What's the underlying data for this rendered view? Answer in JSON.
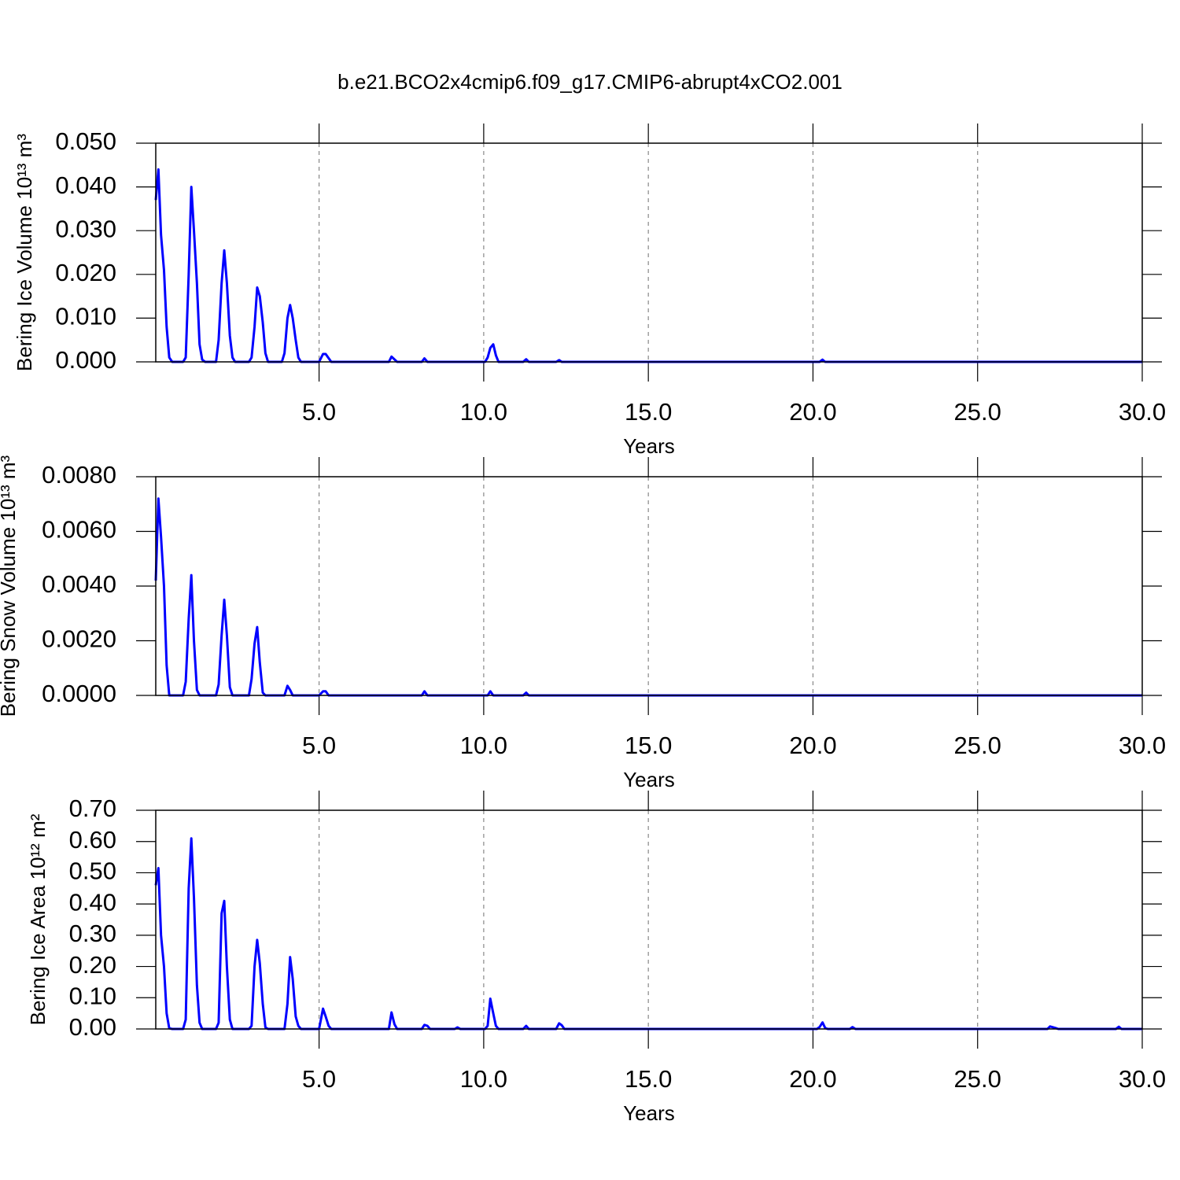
{
  "chart_data": [
    {
      "type": "line",
      "title": "b.e21.BCO2x4cmip6.f09_g17.CMIP6-abrupt4xCO2.001",
      "ylabel": "Bering Ice Volume 10¹³ m³",
      "xlabel": "Years",
      "color": "#0000ff",
      "xgrid": true,
      "xlim": [
        0.04,
        30
      ],
      "ylim": [
        0,
        0.05
      ],
      "xticks": [
        {
          "value": 5,
          "label": "5.0"
        },
        {
          "value": 10,
          "label": "10.0"
        },
        {
          "value": 15,
          "label": "15.0"
        },
        {
          "value": 20,
          "label": "20.0"
        },
        {
          "value": 25,
          "label": "25.0"
        },
        {
          "value": 30,
          "label": "30.0"
        }
      ],
      "yticks": [
        {
          "value": 0,
          "label": "0.000"
        },
        {
          "value": 0.01,
          "label": "0.010"
        },
        {
          "value": 0.02,
          "label": "0.020"
        },
        {
          "value": 0.03,
          "label": "0.030"
        },
        {
          "value": 0.04,
          "label": "0.040"
        },
        {
          "value": 0.05,
          "label": "0.050"
        }
      ],
      "x": [
        0.04,
        0.12,
        0.2,
        0.29,
        0.37,
        0.45,
        0.54,
        0.87,
        0.95,
        1.04,
        1.12,
        1.2,
        1.29,
        1.37,
        1.45,
        1.54,
        1.87,
        1.95,
        2.04,
        2.12,
        2.2,
        2.29,
        2.37,
        2.45,
        2.87,
        2.95,
        3.04,
        3.12,
        3.2,
        3.29,
        3.37,
        3.45,
        3.87,
        3.95,
        4.04,
        4.12,
        4.2,
        4.29,
        4.37,
        4.45,
        5.0,
        5.12,
        5.2,
        5.37,
        7.12,
        7.2,
        7.37,
        8.12,
        8.2,
        8.29,
        10.04,
        10.12,
        10.2,
        10.29,
        10.37,
        10.45,
        11.2,
        11.29,
        11.37,
        12.2,
        12.29,
        12.37,
        20.2,
        20.29,
        20.37,
        30
      ],
      "values": [
        0.037,
        0.044,
        0.029,
        0.021,
        0.008,
        0.001,
        0,
        0,
        0.001,
        0.02,
        0.04,
        0.03,
        0.018,
        0.004,
        0.0005,
        0,
        0,
        0.005,
        0.018,
        0.0255,
        0.018,
        0.006,
        0.001,
        0,
        0,
        0.001,
        0.008,
        0.017,
        0.015,
        0.009,
        0.002,
        0,
        0,
        0.002,
        0.01,
        0.013,
        0.01,
        0.005,
        0.001,
        0,
        0,
        0.0018,
        0.0018,
        0,
        0,
        0.0012,
        0,
        0,
        0.0008,
        0,
        0,
        0.001,
        0.0032,
        0.004,
        0.0015,
        0,
        0,
        0.0006,
        0,
        0,
        0.0004,
        0,
        0,
        0.0005,
        0,
        0
      ]
    },
    {
      "type": "line",
      "ylabel": "Bering Snow Volume 10¹³ m³",
      "xlabel": "Years",
      "color": "#0000ff",
      "xgrid": true,
      "xlim": [
        0.04,
        30
      ],
      "ylim": [
        0,
        0.008
      ],
      "xticks": [
        {
          "value": 5,
          "label": "5.0"
        },
        {
          "value": 10,
          "label": "10.0"
        },
        {
          "value": 15,
          "label": "15.0"
        },
        {
          "value": 20,
          "label": "20.0"
        },
        {
          "value": 25,
          "label": "25.0"
        },
        {
          "value": 30,
          "label": "30.0"
        }
      ],
      "yticks": [
        {
          "value": 0,
          "label": "0.0000"
        },
        {
          "value": 0.002,
          "label": "0.0020"
        },
        {
          "value": 0.004,
          "label": "0.0040"
        },
        {
          "value": 0.006,
          "label": "0.0060"
        },
        {
          "value": 0.008,
          "label": "0.0080"
        }
      ],
      "x": [
        0.04,
        0.12,
        0.2,
        0.29,
        0.37,
        0.45,
        0.87,
        0.95,
        1.04,
        1.12,
        1.2,
        1.29,
        1.37,
        1.87,
        1.95,
        2.04,
        2.12,
        2.2,
        2.29,
        2.37,
        2.87,
        2.95,
        3.04,
        3.12,
        3.2,
        3.29,
        3.37,
        3.95,
        4.04,
        4.12,
        4.2,
        5.0,
        5.12,
        5.2,
        5.29,
        8.12,
        8.2,
        8.29,
        10.12,
        10.2,
        10.29,
        11.2,
        11.29,
        11.37,
        30
      ],
      "values": [
        0.0042,
        0.0072,
        0.0058,
        0.004,
        0.0011,
        0,
        0,
        0.0005,
        0.0028,
        0.0044,
        0.002,
        0.0002,
        0,
        0,
        0.0004,
        0.0022,
        0.0035,
        0.0022,
        0.0003,
        0,
        0,
        0.0006,
        0.0019,
        0.0025,
        0.0012,
        0.0001,
        0,
        0,
        0.00035,
        0.0002,
        0,
        0,
        0.00015,
        0.00015,
        0,
        0,
        0.00015,
        0,
        0,
        0.00015,
        0,
        0,
        0.0001,
        0,
        0
      ]
    },
    {
      "type": "line",
      "ylabel": "Bering Ice Area 10¹² m²",
      "xlabel": "Years",
      "color": "#0000ff",
      "xgrid": true,
      "xlim": [
        0.04,
        30
      ],
      "ylim": [
        0,
        0.7
      ],
      "xticks": [
        {
          "value": 5,
          "label": "5.0"
        },
        {
          "value": 10,
          "label": "10.0"
        },
        {
          "value": 15,
          "label": "15.0"
        },
        {
          "value": 20,
          "label": "20.0"
        },
        {
          "value": 25,
          "label": "25.0"
        },
        {
          "value": 30,
          "label": "30.0"
        }
      ],
      "yticks": [
        {
          "value": 0,
          "label": "0.00"
        },
        {
          "value": 0.1,
          "label": "0.10"
        },
        {
          "value": 0.2,
          "label": "0.20"
        },
        {
          "value": 0.3,
          "label": "0.30"
        },
        {
          "value": 0.4,
          "label": "0.40"
        },
        {
          "value": 0.5,
          "label": "0.50"
        },
        {
          "value": 0.6,
          "label": "0.60"
        },
        {
          "value": 0.7,
          "label": "0.70"
        }
      ],
      "x": [
        0.04,
        0.12,
        0.2,
        0.29,
        0.37,
        0.45,
        0.54,
        0.87,
        0.95,
        1.04,
        1.12,
        1.2,
        1.29,
        1.37,
        1.45,
        1.87,
        1.95,
        2.04,
        2.12,
        2.2,
        2.29,
        2.37,
        2.87,
        2.95,
        3.04,
        3.12,
        3.2,
        3.29,
        3.37,
        3.45,
        3.95,
        4.04,
        4.12,
        4.2,
        4.29,
        4.37,
        4.45,
        5.0,
        5.12,
        5.2,
        5.29,
        5.37,
        7.12,
        7.2,
        7.29,
        7.37,
        8.12,
        8.2,
        8.29,
        8.37,
        9.12,
        9.2,
        9.29,
        10.04,
        10.12,
        10.2,
        10.29,
        10.37,
        10.45,
        11.2,
        11.29,
        11.37,
        12.2,
        12.29,
        12.37,
        12.45,
        20.12,
        20.2,
        20.29,
        20.37,
        20.45,
        21.12,
        21.2,
        21.29,
        27.12,
        27.2,
        27.37,
        27.45,
        29.2,
        29.29,
        29.37,
        30
      ],
      "values": [
        0.46,
        0.515,
        0.3,
        0.2,
        0.05,
        0.002,
        0,
        0,
        0.03,
        0.45,
        0.61,
        0.42,
        0.14,
        0.02,
        0,
        0,
        0.02,
        0.37,
        0.41,
        0.2,
        0.03,
        0,
        0,
        0.01,
        0.2,
        0.285,
        0.21,
        0.08,
        0.005,
        0,
        0,
        0.08,
        0.23,
        0.16,
        0.04,
        0.01,
        0,
        0,
        0.065,
        0.04,
        0.01,
        0,
        0,
        0.053,
        0.015,
        0,
        0,
        0.013,
        0.01,
        0,
        0,
        0.005,
        0,
        0,
        0.01,
        0.097,
        0.05,
        0.01,
        0,
        0,
        0.01,
        0,
        0,
        0.018,
        0.012,
        0,
        0,
        0.006,
        0.021,
        0.003,
        0,
        0,
        0.006,
        0,
        0,
        0.008,
        0.003,
        0,
        0,
        0.007,
        0,
        0
      ]
    }
  ]
}
